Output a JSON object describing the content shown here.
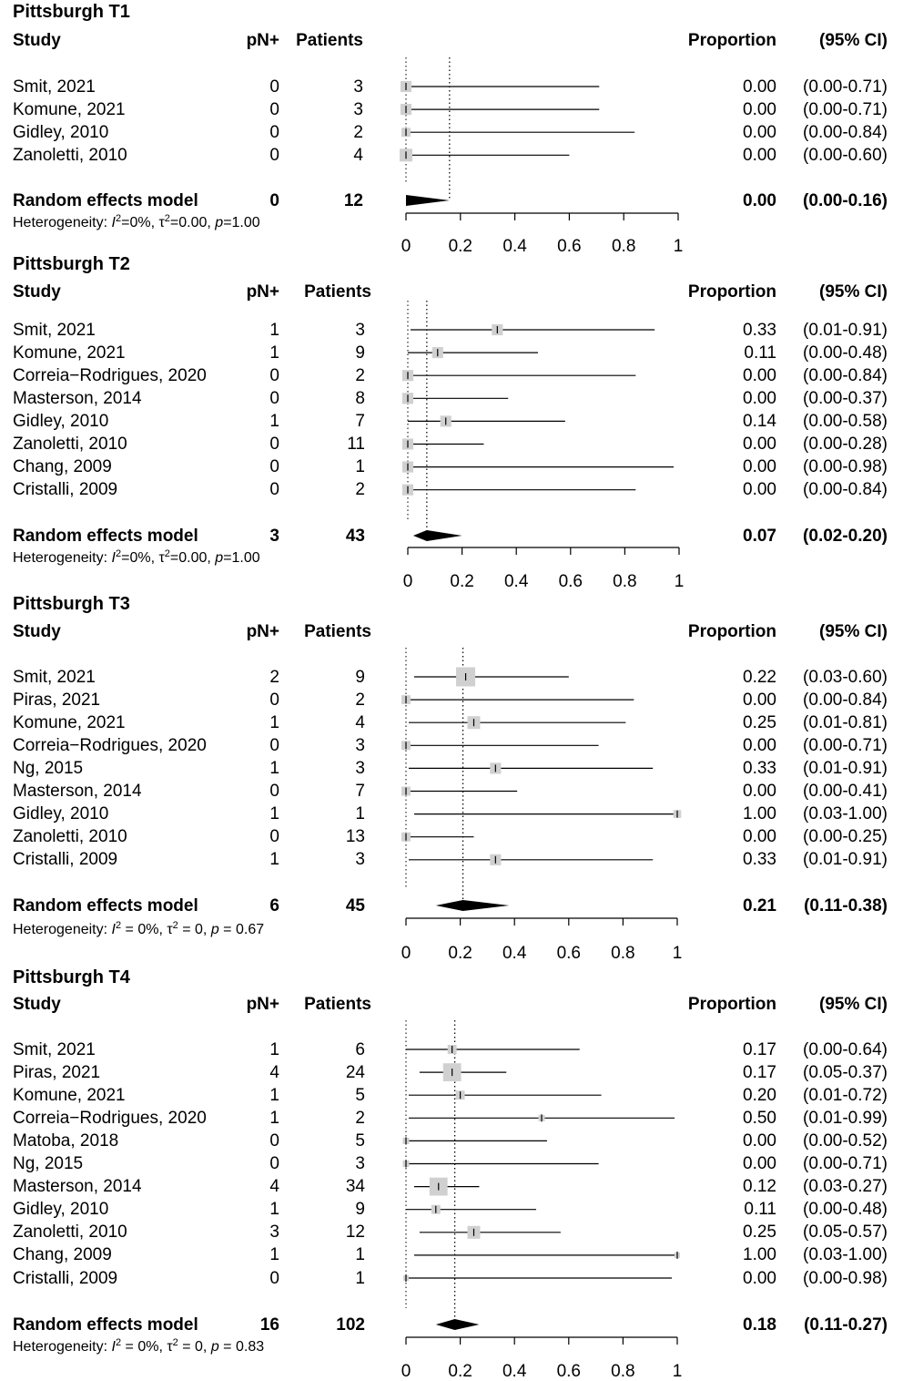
{
  "headers": {
    "study": "Study",
    "pn": "pN+",
    "patients": "Patients",
    "proportion": "Proportion",
    "ci": "(95% CI)"
  },
  "chart_data": [
    {
      "type": "forest",
      "title": "Pittsburgh T1",
      "xlim": [
        0,
        1
      ],
      "ticks": [
        "0",
        "0.2",
        "0.4",
        "0.6",
        "0.8",
        "1"
      ],
      "tick_values": [
        0,
        0.2,
        0.4,
        0.6,
        0.8,
        1
      ],
      "reference_line": 0.16,
      "studies": [
        {
          "study": "Smit, 2021",
          "pn": "0",
          "patients": "3",
          "proportion": "0.00",
          "ci": "(0.00-0.71)",
          "est": 0.0,
          "lo": 0.0,
          "hi": 0.71,
          "weight": 3
        },
        {
          "study": "Komune, 2021",
          "pn": "0",
          "patients": "3",
          "proportion": "0.00",
          "ci": "(0.00-0.71)",
          "est": 0.0,
          "lo": 0.0,
          "hi": 0.71,
          "weight": 3
        },
        {
          "study": "Gidley, 2010",
          "pn": "0",
          "patients": "2",
          "proportion": "0.00",
          "ci": "(0.00-0.84)",
          "est": 0.0,
          "lo": 0.0,
          "hi": 0.84,
          "weight": 2
        },
        {
          "study": "Zanoletti, 2010",
          "pn": "0",
          "patients": "4",
          "proportion": "0.00",
          "ci": "(0.00-0.60)",
          "est": 0.0,
          "lo": 0.0,
          "hi": 0.6,
          "weight": 4
        }
      ],
      "model": {
        "label": "Random effects model",
        "pn": "0",
        "patients": "12",
        "proportion": "0.00",
        "ci": "(0.00-0.16)",
        "est": 0.0,
        "lo": 0.0,
        "hi": 0.16
      },
      "heterogeneity": {
        "prefix": "Heterogeneity: ",
        "I": "I",
        "I_sup": "2",
        "I_val": "=0%, ",
        "tau": "τ",
        "tau_sup": "2",
        "tau_val": "=0.00, ",
        "p": "p",
        "p_val": "=1.00"
      }
    },
    {
      "type": "forest",
      "title": "Pittsburgh T2",
      "xlim": [
        0,
        1
      ],
      "ticks": [
        "0",
        "0.2",
        "0.4",
        "0.6",
        "0.8",
        "1"
      ],
      "tick_values": [
        0,
        0.2,
        0.4,
        0.6,
        0.8,
        1
      ],
      "reference_line": 0.07,
      "studies": [
        {
          "study": "Smit, 2021",
          "pn": "1",
          "patients": "3",
          "proportion": "0.33",
          "ci": "(0.01-0.91)",
          "est": 0.33,
          "lo": 0.01,
          "hi": 0.91,
          "weight": 3
        },
        {
          "study": "Komune, 2021",
          "pn": "1",
          "patients": "9",
          "proportion": "0.11",
          "ci": "(0.00-0.48)",
          "est": 0.11,
          "lo": 0.0,
          "hi": 0.48,
          "weight": 3
        },
        {
          "study": "Correia−Rodrigues, 2020",
          "pn": "0",
          "patients": "2",
          "proportion": "0.00",
          "ci": "(0.00-0.84)",
          "est": 0.0,
          "lo": 0.0,
          "hi": 0.84,
          "weight": 3
        },
        {
          "study": "Masterson, 2014",
          "pn": "0",
          "patients": "8",
          "proportion": "0.00",
          "ci": "(0.00-0.37)",
          "est": 0.0,
          "lo": 0.0,
          "hi": 0.37,
          "weight": 3
        },
        {
          "study": "Gidley, 2010",
          "pn": "1",
          "patients": "7",
          "proportion": "0.14",
          "ci": "(0.00-0.58)",
          "est": 0.14,
          "lo": 0.0,
          "hi": 0.58,
          "weight": 3
        },
        {
          "study": "Zanoletti, 2010",
          "pn": "0",
          "patients": "11",
          "proportion": "0.00",
          "ci": "(0.00-0.28)",
          "est": 0.0,
          "lo": 0.0,
          "hi": 0.28,
          "weight": 3
        },
        {
          "study": "Chang, 2009",
          "pn": "0",
          "patients": "1",
          "proportion": "0.00",
          "ci": "(0.00-0.98)",
          "est": 0.0,
          "lo": 0.0,
          "hi": 0.98,
          "weight": 3
        },
        {
          "study": "Cristalli, 2009",
          "pn": "0",
          "patients": "2",
          "proportion": "0.00",
          "ci": "(0.00-0.84)",
          "est": 0.0,
          "lo": 0.0,
          "hi": 0.84,
          "weight": 3
        }
      ],
      "model": {
        "label": "Random effects model",
        "pn": "3",
        "patients": "43",
        "proportion": "0.07",
        "ci": "(0.02-0.20)",
        "est": 0.07,
        "lo": 0.02,
        "hi": 0.2
      },
      "heterogeneity": {
        "prefix": "Heterogeneity: ",
        "I": "I",
        "I_sup": "2",
        "I_val": "=0%, ",
        "tau": "τ",
        "tau_sup": "2",
        "tau_val": "=0.00, ",
        "p": "p",
        "p_val": "=1.00"
      }
    },
    {
      "type": "forest",
      "title": "Pittsburgh T3",
      "xlim": [
        0,
        1
      ],
      "ticks": [
        "0",
        "0.2",
        "0.4",
        "0.6",
        "0.8",
        "1"
      ],
      "tick_values": [
        0,
        0.2,
        0.4,
        0.6,
        0.8,
        1
      ],
      "reference_line": 0.21,
      "studies": [
        {
          "study": "Smit, 2021",
          "pn": "2",
          "patients": "9",
          "proportion": "0.22",
          "ci": "(0.03-0.60)",
          "est": 0.22,
          "lo": 0.03,
          "hi": 0.6,
          "weight": 9
        },
        {
          "study": "Piras, 2021",
          "pn": "0",
          "patients": "2",
          "proportion": "0.00",
          "ci": "(0.00-0.84)",
          "est": 0.0,
          "lo": 0.0,
          "hi": 0.84,
          "weight": 2
        },
        {
          "study": "Komune, 2021",
          "pn": "1",
          "patients": "4",
          "proportion": "0.25",
          "ci": "(0.01-0.81)",
          "est": 0.25,
          "lo": 0.01,
          "hi": 0.81,
          "weight": 4
        },
        {
          "study": "Correia−Rodrigues, 2020",
          "pn": "0",
          "patients": "3",
          "proportion": "0.00",
          "ci": "(0.00-0.71)",
          "est": 0.0,
          "lo": 0.0,
          "hi": 0.71,
          "weight": 2
        },
        {
          "study": "Ng, 2015",
          "pn": "1",
          "patients": "3",
          "proportion": "0.33",
          "ci": "(0.01-0.91)",
          "est": 0.33,
          "lo": 0.01,
          "hi": 0.91,
          "weight": 3
        },
        {
          "study": "Masterson, 2014",
          "pn": "0",
          "patients": "7",
          "proportion": "0.00",
          "ci": "(0.00-0.41)",
          "est": 0.0,
          "lo": 0.0,
          "hi": 0.41,
          "weight": 2
        },
        {
          "study": "Gidley, 2010",
          "pn": "1",
          "patients": "1",
          "proportion": "1.00",
          "ci": "(0.03-1.00)",
          "est": 1.0,
          "lo": 0.03,
          "hi": 1.0,
          "weight": 1.5
        },
        {
          "study": "Zanoletti, 2010",
          "pn": "0",
          "patients": "13",
          "proportion": "0.00",
          "ci": "(0.00-0.25)",
          "est": 0.0,
          "lo": 0.0,
          "hi": 0.25,
          "weight": 2
        },
        {
          "study": "Cristalli, 2009",
          "pn": "1",
          "patients": "3",
          "proportion": "0.33",
          "ci": "(0.01-0.91)",
          "est": 0.33,
          "lo": 0.01,
          "hi": 0.91,
          "weight": 3
        }
      ],
      "model": {
        "label": "Random effects model",
        "pn": "6",
        "patients": "45",
        "proportion": "0.21",
        "ci": "(0.11-0.38)",
        "est": 0.21,
        "lo": 0.11,
        "hi": 0.38
      },
      "heterogeneity": {
        "prefix": "Heterogeneity: ",
        "I": "I",
        "I_sup": "2",
        "I_val": " = 0%, ",
        "tau": "τ",
        "tau_sup": "2",
        "tau_val": " = 0, ",
        "p": "p",
        "p_val": " = 0.67"
      }
    },
    {
      "type": "forest",
      "title": "Pittsburgh T4",
      "xlim": [
        0,
        1
      ],
      "ticks": [
        "0",
        "0.2",
        "0.4",
        "0.6",
        "0.8",
        "1"
      ],
      "tick_values": [
        0,
        0.2,
        0.4,
        0.6,
        0.8,
        1
      ],
      "reference_line": 0.18,
      "studies": [
        {
          "study": "Smit, 2021",
          "pn": "1",
          "patients": "6",
          "proportion": "0.17",
          "ci": "(0.00-0.64)",
          "est": 0.17,
          "lo": 0.0,
          "hi": 0.64,
          "weight": 2
        },
        {
          "study": "Piras, 2021",
          "pn": "4",
          "patients": "24",
          "proportion": "0.17",
          "ci": "(0.05-0.37)",
          "est": 0.17,
          "lo": 0.05,
          "hi": 0.37,
          "weight": 8
        },
        {
          "study": "Komune, 2021",
          "pn": "1",
          "patients": "5",
          "proportion": "0.20",
          "ci": "(0.01-0.72)",
          "est": 0.2,
          "lo": 0.01,
          "hi": 0.72,
          "weight": 2
        },
        {
          "study": "Correia−Rodrigues, 2020",
          "pn": "1",
          "patients": "2",
          "proportion": "0.50",
          "ci": "(0.01-0.99)",
          "est": 0.5,
          "lo": 0.01,
          "hi": 0.99,
          "weight": 1
        },
        {
          "study": "Matoba, 2018",
          "pn": "0",
          "patients": "5",
          "proportion": "0.00",
          "ci": "(0.00-0.52)",
          "est": 0.0,
          "lo": 0.0,
          "hi": 0.52,
          "weight": 1
        },
        {
          "study": "Ng, 2015",
          "pn": "0",
          "patients": "3",
          "proportion": "0.00",
          "ci": "(0.00-0.71)",
          "est": 0.0,
          "lo": 0.0,
          "hi": 0.71,
          "weight": 1
        },
        {
          "study": "Masterson, 2014",
          "pn": "4",
          "patients": "34",
          "proportion": "0.12",
          "ci": "(0.03-0.27)",
          "est": 0.12,
          "lo": 0.03,
          "hi": 0.27,
          "weight": 8
        },
        {
          "study": "Gidley, 2010",
          "pn": "1",
          "patients": "9",
          "proportion": "0.11",
          "ci": "(0.00-0.48)",
          "est": 0.11,
          "lo": 0.0,
          "hi": 0.48,
          "weight": 2
        },
        {
          "study": "Zanoletti, 2010",
          "pn": "3",
          "patients": "12",
          "proportion": "0.25",
          "ci": "(0.05-0.57)",
          "est": 0.25,
          "lo": 0.05,
          "hi": 0.57,
          "weight": 4
        },
        {
          "study": "Chang, 2009",
          "pn": "1",
          "patients": "1",
          "proportion": "1.00",
          "ci": "(0.03-1.00)",
          "est": 1.0,
          "lo": 0.03,
          "hi": 1.0,
          "weight": 0.7
        },
        {
          "study": "Cristalli, 2009",
          "pn": "0",
          "patients": "1",
          "proportion": "0.00",
          "ci": "(0.00-0.98)",
          "est": 0.0,
          "lo": 0.0,
          "hi": 0.98,
          "weight": 0.7
        }
      ],
      "model": {
        "label": "Random effects model",
        "pn": "16",
        "patients": "102",
        "proportion": "0.18",
        "ci": "(0.11-0.27)",
        "est": 0.18,
        "lo": 0.11,
        "hi": 0.27
      },
      "heterogeneity": {
        "prefix": "Heterogeneity: ",
        "I": "I",
        "I_sup": "2",
        "I_val": " = 0%, ",
        "tau": "τ",
        "tau_sup": "2",
        "tau_val": " = 0, ",
        "p": "p",
        "p_val": " = 0.83"
      }
    }
  ]
}
